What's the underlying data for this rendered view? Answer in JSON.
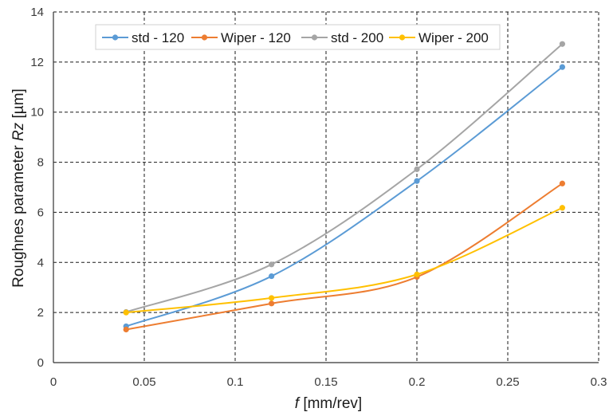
{
  "chart_data": {
    "type": "line",
    "x": [
      0.04,
      0.12,
      0.2,
      0.28
    ],
    "series": [
      {
        "name": "std - 120",
        "values": [
          1.45,
          3.45,
          7.25,
          11.8
        ],
        "color": "#5b9bd5"
      },
      {
        "name": "Wiper - 120",
        "values": [
          1.32,
          2.36,
          3.42,
          7.15
        ],
        "color": "#ed7d31"
      },
      {
        "name": "std - 200",
        "values": [
          2.02,
          3.92,
          7.72,
          12.72
        ],
        "color": "#a5a5a5"
      },
      {
        "name": "Wiper - 200",
        "values": [
          2.0,
          2.58,
          3.52,
          6.18
        ],
        "color": "#ffc000"
      }
    ],
    "xlim": [
      0,
      0.3
    ],
    "ylim": [
      0,
      14
    ],
    "xticks": [
      "0",
      "0.05",
      "0.1",
      "0.15",
      "0.2",
      "0.25",
      "0.3"
    ],
    "yticks": [
      "0",
      "2",
      "4",
      "6",
      "8",
      "10",
      "12",
      "14"
    ],
    "xlabel": {
      "italic": "f",
      "rest": " [mm/rev]"
    },
    "ylabel": {
      "prefix": "Roughnes parameter ",
      "italic": "Rz",
      "suffix": " [µm]"
    },
    "grid": true,
    "legend_position": "top-left"
  }
}
